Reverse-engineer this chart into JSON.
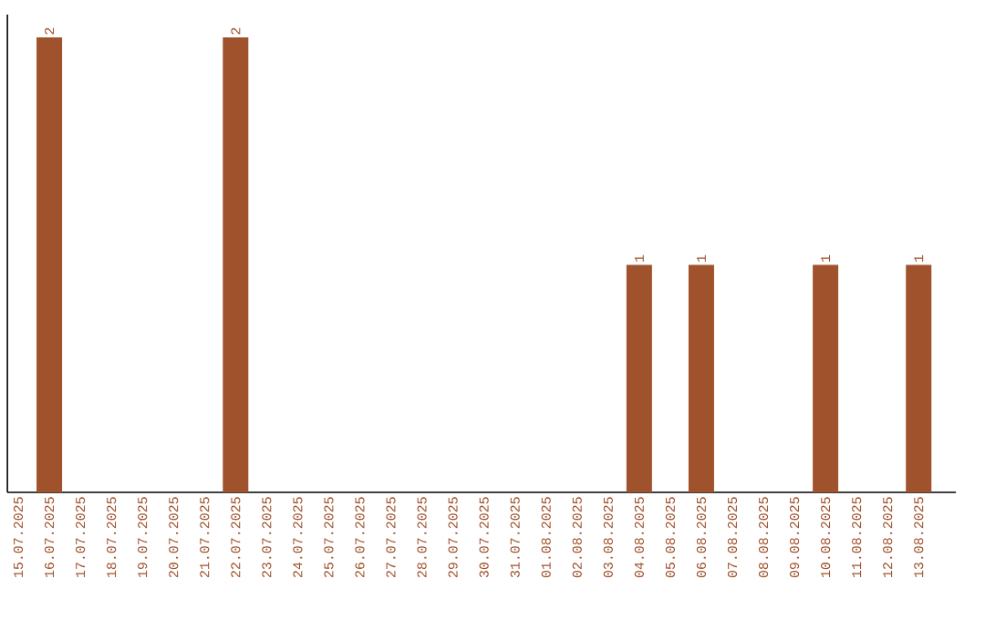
{
  "chart_data": {
    "type": "bar",
    "categories": [
      "15.07.2025",
      "16.07.2025",
      "17.07.2025",
      "18.07.2025",
      "19.07.2025",
      "20.07.2025",
      "21.07.2025",
      "22.07.2025",
      "23.07.2025",
      "24.07.2025",
      "25.07.2025",
      "26.07.2025",
      "27.07.2025",
      "28.07.2025",
      "29.07.2025",
      "30.07.2025",
      "31.07.2025",
      "01.08.2025",
      "02.08.2025",
      "03.08.2025",
      "04.08.2025",
      "05.08.2025",
      "06.08.2025",
      "07.08.2025",
      "08.08.2025",
      "09.08.2025",
      "10.08.2025",
      "11.08.2025",
      "12.08.2025",
      "13.08.2025"
    ],
    "values": [
      0,
      2,
      0,
      0,
      0,
      0,
      0,
      2,
      0,
      0,
      0,
      0,
      0,
      0,
      0,
      0,
      0,
      0,
      0,
      0,
      1,
      0,
      1,
      0,
      0,
      0,
      1,
      0,
      0,
      1
    ],
    "value_labels": [
      null,
      "2",
      null,
      null,
      null,
      null,
      null,
      "2",
      null,
      null,
      null,
      null,
      null,
      null,
      null,
      null,
      null,
      null,
      null,
      null,
      "1",
      null,
      "1",
      null,
      null,
      null,
      "1",
      null,
      null,
      "1"
    ],
    "color": "#a0522d",
    "ylim": [
      0,
      2.1
    ],
    "tick_labels": "x"
  }
}
